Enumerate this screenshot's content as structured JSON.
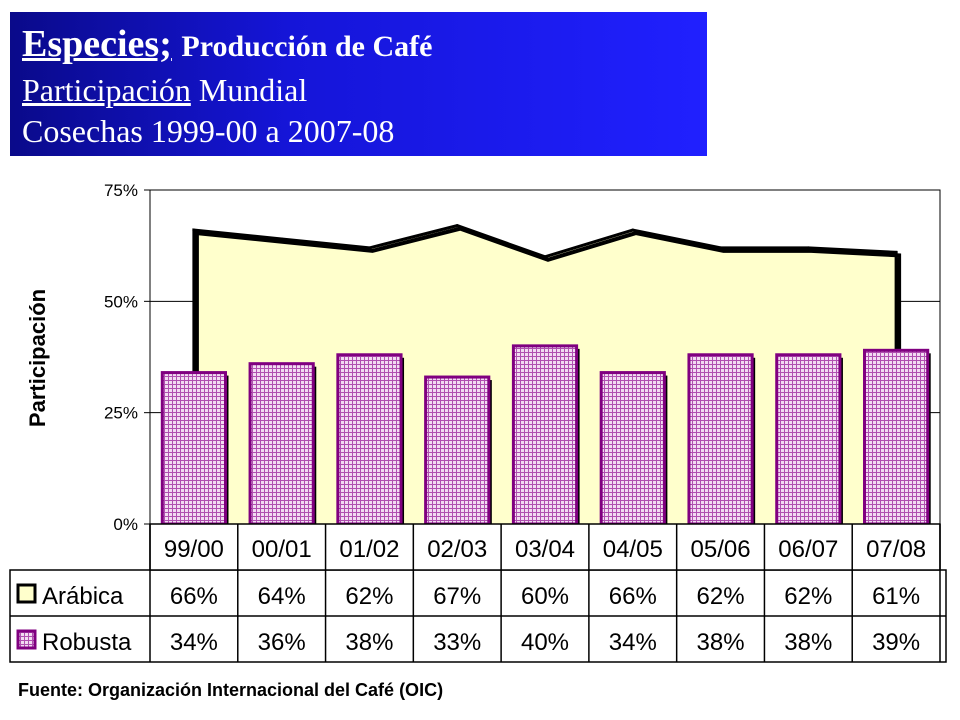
{
  "title": {
    "line1_main": "Especies;",
    "line1_sub": "Producción de Café",
    "line2_underlined": "Participación",
    "line2_rest": "Mundial",
    "line3": "Cosechas 1999-00 a 2007-08"
  },
  "source": "Fuente: Organización Internacional del Café (OIC)",
  "chart_data": {
    "type": "bar",
    "ylabel": "Participación",
    "ylim": [
      0,
      75
    ],
    "yticks": [
      "0%",
      "25%",
      "50%",
      "75%"
    ],
    "grid": true,
    "categories": [
      "99/00",
      "00/01",
      "01/02",
      "02/03",
      "03/04",
      "04/05",
      "05/06",
      "06/07",
      "07/08"
    ],
    "series": [
      {
        "name": "Arábica",
        "mark": "area",
        "values": [
          66,
          64,
          62,
          67,
          60,
          66,
          62,
          62,
          61
        ],
        "labels": [
          "66%",
          "64%",
          "62%",
          "67%",
          "60%",
          "66%",
          "62%",
          "62%",
          "61%"
        ],
        "fill_color": "#ffffcc",
        "line_color": "#000000"
      },
      {
        "name": "Robusta",
        "mark": "bar",
        "values": [
          34,
          36,
          38,
          33,
          40,
          34,
          38,
          38,
          39
        ],
        "labels": [
          "34%",
          "36%",
          "38%",
          "33%",
          "40%",
          "34%",
          "38%",
          "38%",
          "39%"
        ],
        "fill_color": "#e0a0e0",
        "line_color": "#800080"
      }
    ]
  }
}
